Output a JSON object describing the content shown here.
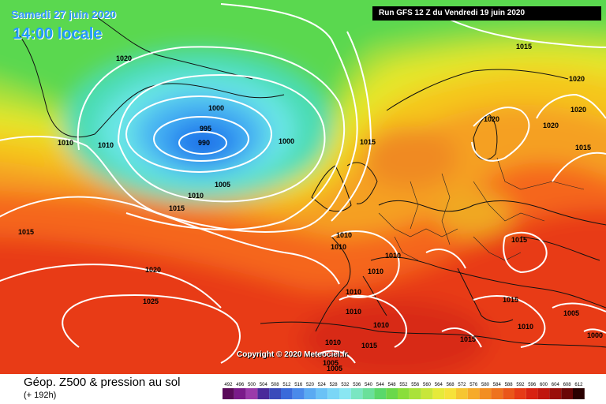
{
  "header": {
    "date": "Samedi 27 juin 2020",
    "time": "14:00 locale",
    "run": "Run GFS 12 Z du Vendredi 19 juin 2020"
  },
  "copyright": "Copyright © 2020 Meteociel.fr",
  "footer": {
    "product": "Géop. Z500 & pression au sol",
    "lead": "(+ 192h)"
  },
  "isobars": {
    "l1": "1020",
    "l2": "1010",
    "l3": "1010",
    "l4": "1000",
    "l5": "995",
    "l6": "990",
    "l7": "1000",
    "l8": "1015",
    "l9": "1005",
    "l10": "1010",
    "l11": "1015",
    "l12": "1015",
    "l13": "1020",
    "l14": "1025",
    "l15": "1015",
    "l16": "1020",
    "l17": "1020",
    "l18": "1020",
    "l19": "1020",
    "l20": "1015",
    "l21": "1010",
    "l22": "1010",
    "l23": "1010",
    "l24": "1010",
    "l25": "1010",
    "l26": "1010",
    "l27": "1010",
    "l28": "1015",
    "l29": "1015",
    "l30": "1015",
    "l31": "1005",
    "l32": "1010",
    "l33": "1015",
    "l34": "1010",
    "l35": "1005",
    "l36": "1005",
    "l37": "1000"
  },
  "scale": {
    "labels": [
      "492",
      "496",
      "500",
      "504",
      "508",
      "512",
      "516",
      "520",
      "524",
      "528",
      "532",
      "536",
      "540",
      "544",
      "548",
      "552",
      "556",
      "560",
      "564",
      "568",
      "572",
      "576",
      "580",
      "584",
      "588",
      "592",
      "596",
      "600",
      "604",
      "608",
      "612"
    ],
    "colors": [
      "#5a0a5a",
      "#7a1a8a",
      "#9a3aaa",
      "#4a2a9a",
      "#3a4aba",
      "#3a6ada",
      "#4a8aea",
      "#5aaaf2",
      "#6ac2f6",
      "#7ad6f6",
      "#8ae6f2",
      "#7ae6c2",
      "#6ae09a",
      "#5ad86a",
      "#6ad84a",
      "#8ade3a",
      "#aae23a",
      "#c8e63a",
      "#e6ea3a",
      "#f6e23a",
      "#f6c632",
      "#f6aa2a",
      "#f28e22",
      "#ee721e",
      "#ea561a",
      "#e63a16",
      "#d82212",
      "#c0160e",
      "#9a0e0a",
      "#6a0606",
      "#2a0000"
    ]
  }
}
